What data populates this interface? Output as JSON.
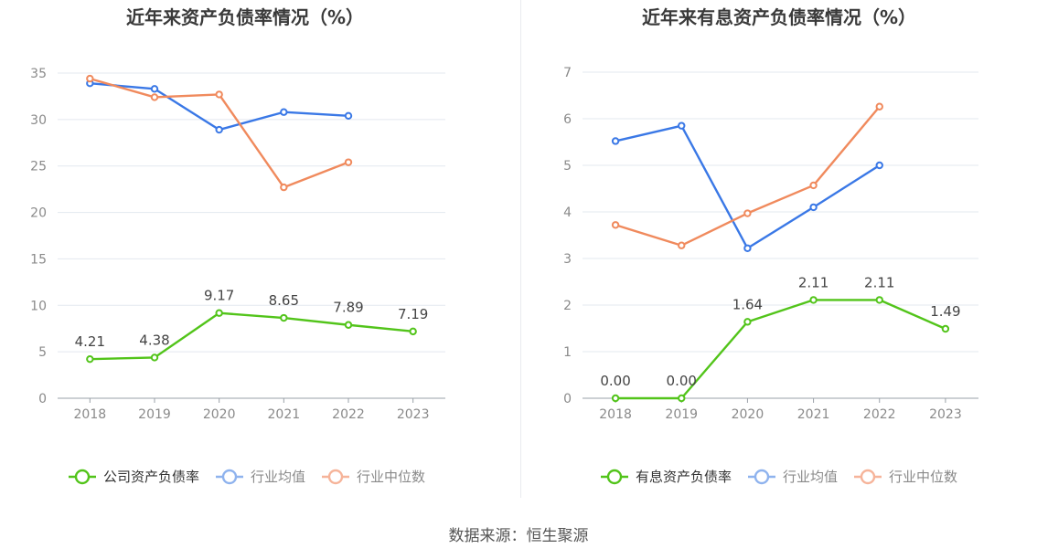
{
  "colors": {
    "company": "#52c41a",
    "average": "#3a78e6",
    "median": "#f08a5d",
    "legend_average": "#8fb3ee",
    "legend_median": "#f6b49a",
    "grid": "#e3e8ef",
    "axis": "#9aa0a8"
  },
  "source": "数据来源：恒生聚源",
  "chart_data": [
    {
      "type": "line",
      "title": "近年来资产负债率情况（%）",
      "categories": [
        "2018",
        "2019",
        "2020",
        "2021",
        "2022",
        "2023"
      ],
      "ylim": [
        0,
        35
      ],
      "yticks": [
        0,
        5,
        10,
        15,
        20,
        25,
        30,
        35
      ],
      "grid": true,
      "legend_position": "bottom",
      "series": [
        {
          "name": "公司资产负债率",
          "key": "company",
          "values": [
            4.21,
            4.38,
            9.17,
            8.65,
            7.89,
            7.19
          ],
          "labels": [
            "4.21",
            "4.38",
            "9.17",
            "8.65",
            "7.89",
            "7.19"
          ]
        },
        {
          "name": "行业均值",
          "key": "average",
          "values": [
            33.9,
            33.3,
            28.9,
            30.8,
            30.4,
            null
          ]
        },
        {
          "name": "行业中位数",
          "key": "median",
          "values": [
            34.4,
            32.4,
            32.7,
            22.7,
            25.4,
            null
          ]
        }
      ]
    },
    {
      "type": "line",
      "title": "近年来有息资产负债率情况（%）",
      "categories": [
        "2018",
        "2019",
        "2020",
        "2021",
        "2022",
        "2023"
      ],
      "ylim": [
        0,
        7
      ],
      "yticks": [
        0,
        1,
        2,
        3,
        4,
        5,
        6,
        7
      ],
      "grid": true,
      "legend_position": "bottom",
      "series": [
        {
          "name": "有息资产负债率",
          "key": "company",
          "values": [
            0.0,
            0.0,
            1.64,
            2.11,
            2.11,
            1.49
          ],
          "labels": [
            "0.00",
            "0.00",
            "1.64",
            "2.11",
            "2.11",
            "1.49"
          ]
        },
        {
          "name": "行业均值",
          "key": "average",
          "values": [
            5.52,
            5.85,
            3.22,
            4.1,
            5.0,
            null
          ]
        },
        {
          "name": "行业中位数",
          "key": "median",
          "values": [
            3.72,
            3.28,
            3.97,
            4.57,
            6.26,
            null
          ]
        }
      ]
    }
  ]
}
